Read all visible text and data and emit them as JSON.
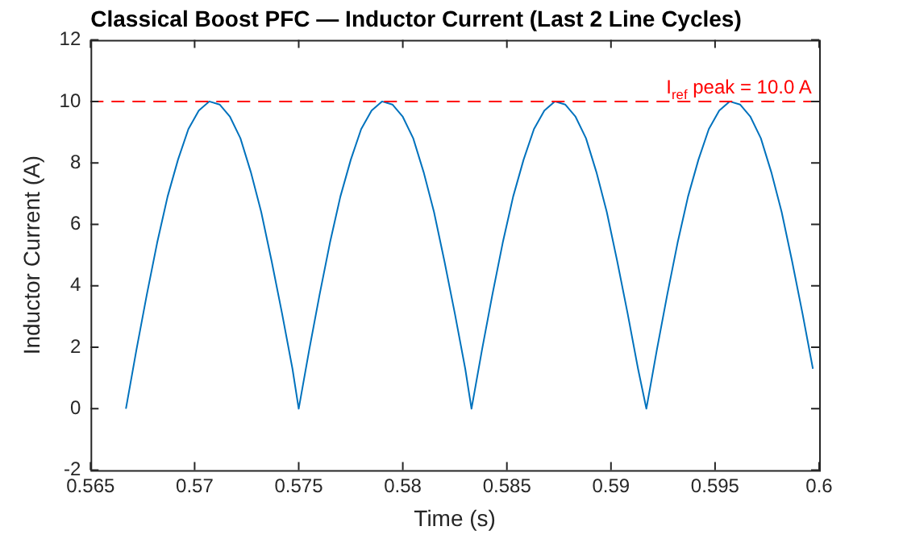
{
  "chart_data": {
    "type": "line",
    "title": "Classical Boost PFC — Inductor Current (Last 2 Line Cycles)",
    "xlabel": "Time (s)",
    "ylabel": "Inductor Current (A)",
    "x": [
      0.5667,
      0.5672,
      0.5677,
      0.5682,
      0.5687,
      0.5692,
      0.5697,
      0.5702,
      0.5707,
      0.5712,
      0.5717,
      0.5722,
      0.5727,
      0.5732,
      0.5737,
      0.5742,
      0.5747,
      0.575,
      0.5755,
      0.576,
      0.5765,
      0.577,
      0.5775,
      0.578,
      0.5785,
      0.579,
      0.5795,
      0.58,
      0.5805,
      0.581,
      0.5815,
      0.582,
      0.5825,
      0.583,
      0.5833,
      0.5838,
      0.5843,
      0.5848,
      0.5853,
      0.5858,
      0.5863,
      0.5868,
      0.5873,
      0.5878,
      0.5883,
      0.5888,
      0.5893,
      0.5898,
      0.5903,
      0.5908,
      0.5913,
      0.5917,
      0.5922,
      0.5927,
      0.5932,
      0.5937,
      0.5942,
      0.5947,
      0.5952,
      0.5957,
      0.5962,
      0.5967,
      0.5972,
      0.5977,
      0.5982,
      0.5987,
      0.5992,
      0.5997
    ],
    "series": [
      {
        "color": "#0072bd",
        "values": [
          0,
          1.9,
          3.7,
          5.4,
          6.9,
          8.1,
          9.1,
          9.7,
          10.0,
          9.9,
          9.5,
          8.8,
          7.7,
          6.4,
          4.8,
          3.1,
          1.3,
          0,
          1.9,
          3.7,
          5.4,
          6.9,
          8.1,
          9.1,
          9.7,
          10.0,
          9.9,
          9.5,
          8.8,
          7.7,
          6.4,
          4.8,
          3.1,
          1.3,
          0,
          1.9,
          3.7,
          5.4,
          6.9,
          8.1,
          9.1,
          9.7,
          10.0,
          9.9,
          9.5,
          8.8,
          7.7,
          6.4,
          4.8,
          3.1,
          1.3,
          0,
          1.9,
          3.7,
          5.4,
          6.9,
          8.1,
          9.1,
          9.7,
          10.0,
          9.9,
          9.5,
          8.8,
          7.7,
          6.4,
          4.8,
          3.1,
          1.3
        ]
      }
    ],
    "xlim": [
      0.565,
      0.6
    ],
    "xticks": [
      0.565,
      0.57,
      0.575,
      0.58,
      0.585,
      0.59,
      0.595,
      0.6
    ],
    "ylim": [
      -2,
      12
    ],
    "yticks": [
      -2,
      0,
      2,
      4,
      6,
      8,
      10,
      12
    ],
    "grid": false,
    "legend": false,
    "line_style": "solid",
    "marker": "none",
    "ref_lines": [
      {
        "axis": "y",
        "value": 10,
        "label": "I$_{ref}$ peak = 10.0 A",
        "color": "#ff0000",
        "line_style": "dashed"
      }
    ]
  }
}
